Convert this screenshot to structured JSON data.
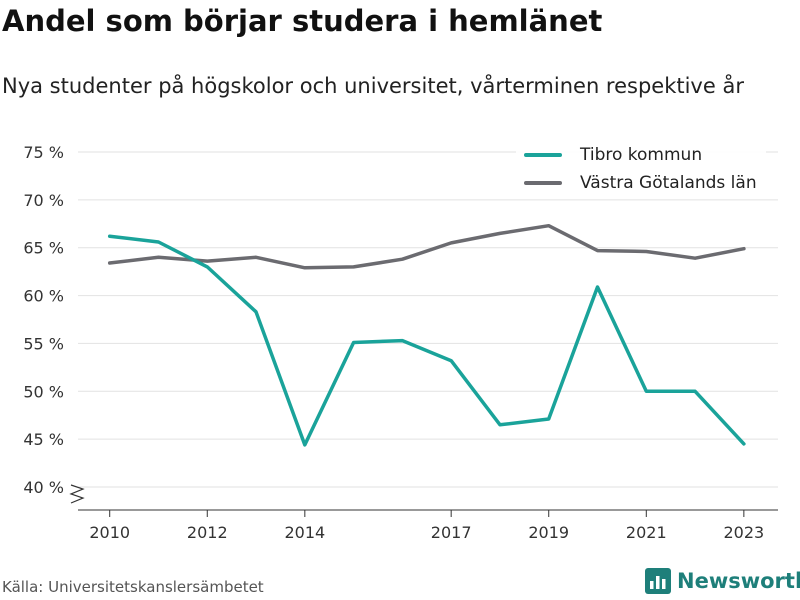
{
  "header": {
    "title": "Andel som börjar studera i hemlänet",
    "subtitle": "Nya studenter på högskolor och universitet, vårterminen respektive år"
  },
  "footer": {
    "source": "Källa: Universitetskanslersämbetet",
    "brand": "Newsworthy",
    "brand_icon": "bar-chart-logo-icon"
  },
  "colors": {
    "tibro": "#1aa39a",
    "vastra": "#6b6b70",
    "brand": "#1e7f7a",
    "grid": "#e2e2e2"
  },
  "chart_data": {
    "type": "line",
    "title": "Andel som börjar studera i hemlänet",
    "subtitle": "Nya studenter på högskolor och universitet, vårterminen respektive år",
    "xlabel": "",
    "ylabel": "",
    "x": [
      2010,
      2011,
      2012,
      2013,
      2014,
      2015,
      2016,
      2017,
      2018,
      2019,
      2020,
      2021,
      2022,
      2023
    ],
    "x_ticks": [
      "2010",
      "2012",
      "2014",
      "2017",
      "2019",
      "2021",
      "2023"
    ],
    "y_ticks": [
      "40 %",
      "45 %",
      "50 %",
      "55 %",
      "60 %",
      "65 %",
      "70 %",
      "75 %"
    ],
    "ylim": [
      40,
      75
    ],
    "grid": "horizontal",
    "legend_position": "top-right",
    "series": [
      {
        "name": "Tibro kommun",
        "values": [
          66.2,
          65.6,
          63.0,
          58.3,
          44.4,
          55.1,
          55.3,
          53.2,
          46.5,
          47.1,
          60.9,
          50.0,
          50.0,
          44.5
        ]
      },
      {
        "name": "Västra Götalands län",
        "values": [
          63.4,
          64.0,
          63.6,
          64.0,
          62.9,
          63.0,
          63.8,
          65.5,
          66.5,
          67.3,
          64.7,
          64.6,
          63.9,
          64.9
        ]
      }
    ]
  }
}
